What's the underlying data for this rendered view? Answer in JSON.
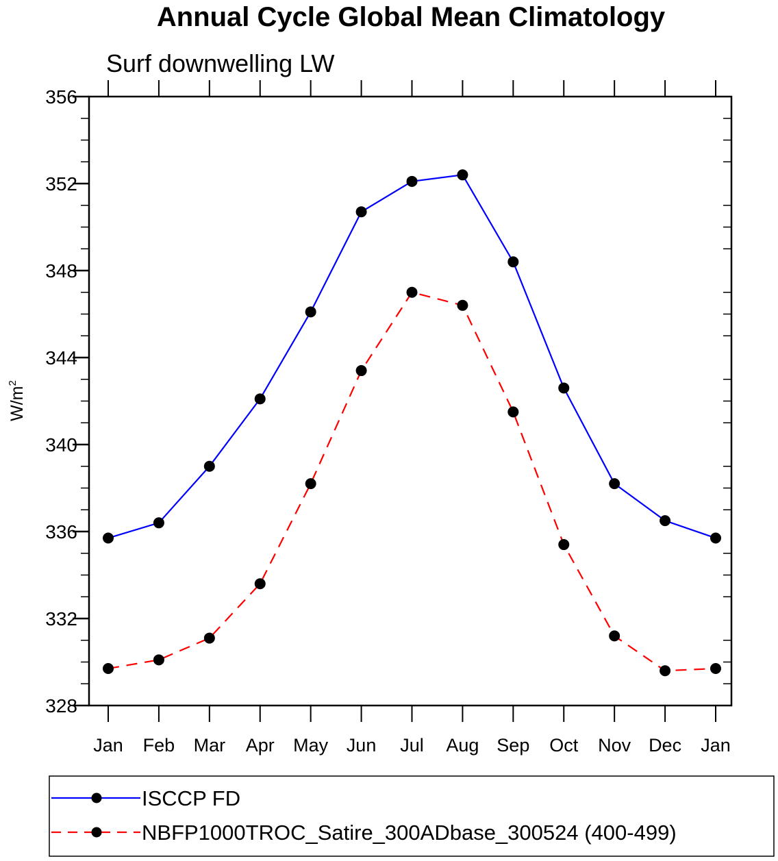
{
  "chart_data": {
    "type": "line",
    "title": "Annual Cycle Global Mean Climatology",
    "subtitle": "Surf downwelling LW",
    "xlabel": "",
    "ylabel": "W/m",
    "ylabel_superscript": "2",
    "categories": [
      "Jan",
      "Feb",
      "Mar",
      "Apr",
      "May",
      "Jun",
      "Jul",
      "Aug",
      "Sep",
      "Oct",
      "Nov",
      "Dec",
      "Jan"
    ],
    "ylim": [
      328,
      356
    ],
    "yticks": [
      328,
      332,
      336,
      340,
      344,
      348,
      352,
      356
    ],
    "grid": false,
    "legend_placement": "bottom",
    "series": [
      {
        "name": "ISCCP FD",
        "color": "#0000ff",
        "style": "solid",
        "marker": "filled-circle",
        "values": [
          335.7,
          336.4,
          339.0,
          342.1,
          346.1,
          350.7,
          352.1,
          352.4,
          348.4,
          342.6,
          338.2,
          336.5,
          335.7
        ]
      },
      {
        "name": "NBFP1000TROC_Satire_300ADbase_300524 (400-499)",
        "color": "#ff0000",
        "style": "dashed",
        "marker": "filled-circle",
        "values": [
          329.7,
          330.1,
          331.1,
          333.6,
          338.2,
          343.4,
          347.0,
          346.4,
          341.5,
          335.4,
          331.2,
          329.6,
          329.7
        ]
      }
    ]
  }
}
